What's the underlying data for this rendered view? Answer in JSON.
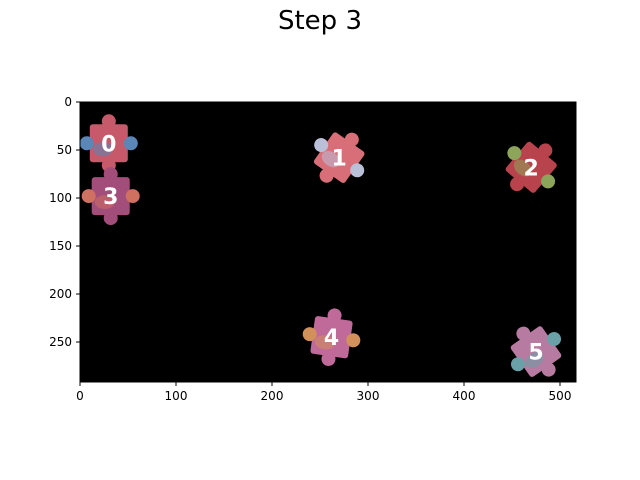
{
  "figure": {
    "title": "Step 3"
  },
  "axes": {
    "x_ticks": [
      "0",
      "100",
      "200",
      "300",
      "400",
      "500"
    ],
    "y_ticks": [
      "0",
      "50",
      "100",
      "150",
      "200",
      "250"
    ]
  },
  "pieces": [
    {
      "id": "0",
      "label": "0",
      "x": 30,
      "y": 43,
      "color": "#c65a6a",
      "accent": "#5a86b8"
    },
    {
      "id": "1",
      "label": "1",
      "x": 270,
      "y": 58,
      "color": "#d86f78",
      "accent": "#b9c0d8"
    },
    {
      "id": "2",
      "label": "2",
      "x": 470,
      "y": 68,
      "color": "#b8434c",
      "accent": "#8ca55a"
    },
    {
      "id": "3",
      "label": "3",
      "x": 32,
      "y": 98,
      "color": "#a34d7a",
      "accent": "#d07060"
    },
    {
      "id": "4",
      "label": "4",
      "x": 262,
      "y": 245,
      "color": "#c06a9a",
      "accent": "#d2905a"
    },
    {
      "id": "5",
      "label": "5",
      "x": 475,
      "y": 260,
      "color": "#b77aa0",
      "accent": "#6aa0a8"
    }
  ]
}
